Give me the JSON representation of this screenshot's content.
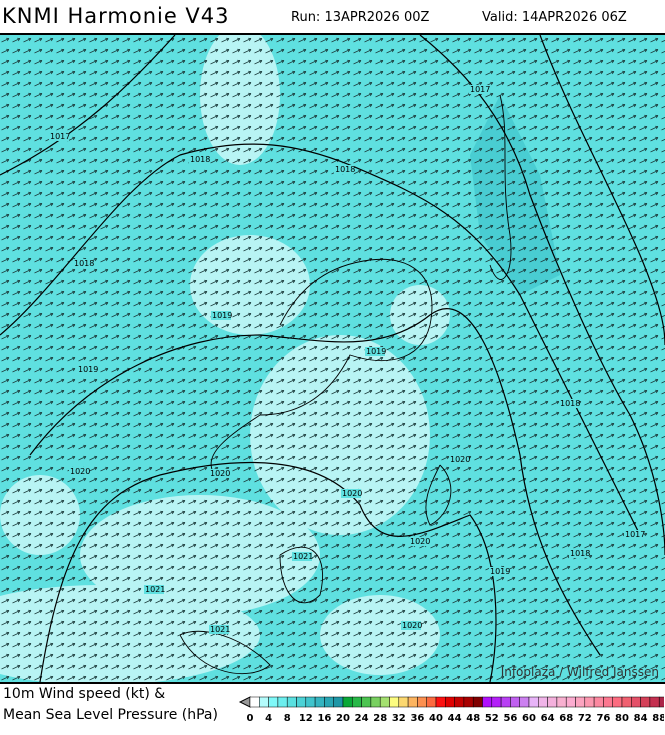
{
  "header": {
    "title": "KNMI Harmonie V43",
    "run": "Run: 13APR2026 00Z",
    "valid": "Valid: 14APR2026 06Z"
  },
  "map": {
    "field": "10m wind arrows over wind speed shading",
    "sea_color": "#5fe0e0",
    "light_color": "#b8f4f4",
    "dark_color": "#3bbfc8",
    "isobar_labels": [
      "1017",
      "1017",
      "1018",
      "1018",
      "1018",
      "1019",
      "1019",
      "1019",
      "1018",
      "1020",
      "1020",
      "1020",
      "1020",
      "1020",
      "1021",
      "1021",
      "1021",
      "1019",
      "1018",
      "1017",
      "1020"
    ],
    "credit": "Infoplaza / Wilfred Janssen"
  },
  "legend": {
    "line1": "10m Wind speed (kt) &",
    "line2": "Mean Sea Level Pressure (hPa)",
    "ticks": [
      "0",
      "4",
      "8",
      "12",
      "16",
      "20",
      "24",
      "28",
      "32",
      "36",
      "40",
      "44",
      "48",
      "52",
      "56",
      "60",
      "64",
      "68",
      "72",
      "76",
      "80",
      "84",
      "88"
    ],
    "colors": [
      "#ffffff",
      "#b4fcfc",
      "#7ff8f8",
      "#6ceeee",
      "#5ae0e0",
      "#4cd2d6",
      "#40c4cc",
      "#34b4c0",
      "#28a6b4",
      "#1e96a6",
      "#0aa838",
      "#28b848",
      "#4cc450",
      "#78d060",
      "#a4e070",
      "#fcfc80",
      "#fcd870",
      "#fcb460",
      "#fc9050",
      "#fc6a40",
      "#fc1010",
      "#e00000",
      "#c40000",
      "#a80000",
      "#800000",
      "#b010fc",
      "#b420f8",
      "#b840f4",
      "#c060f0",
      "#cc80f0",
      "#e8b4f8",
      "#f0b4e8",
      "#f4b0dc",
      "#f8b0d0",
      "#fcacd0",
      "#fca4c0",
      "#fc98b0",
      "#fc88a0",
      "#fc7890",
      "#fc6c80",
      "#f06070",
      "#e45068",
      "#d44058",
      "#c43050",
      "#ac2448",
      "#942040"
    ]
  }
}
